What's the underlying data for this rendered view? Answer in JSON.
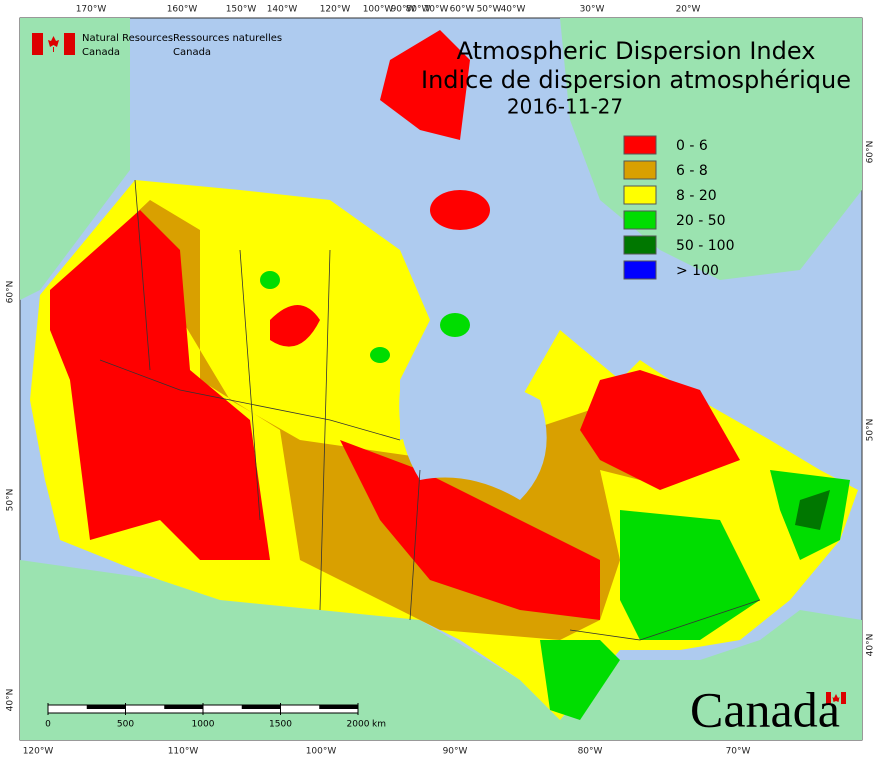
{
  "agency": {
    "en": [
      "Natural Resources",
      "Canada"
    ],
    "fr": [
      "Ressources naturelles",
      "Canada"
    ]
  },
  "title": {
    "en": "Atmospheric Dispersion Index",
    "fr": "Indice de dispersion atmosphérique",
    "date": "2016-11-27"
  },
  "legend": [
    {
      "label": "0 - 6",
      "color": "#ff0000"
    },
    {
      "label": "6 - 8",
      "color": "#d9a000"
    },
    {
      "label": "8 - 20",
      "color": "#ffff00"
    },
    {
      "label": "20 - 50",
      "color": "#00dd00"
    },
    {
      "label": "50 - 100",
      "color": "#007700"
    },
    {
      "label": "> 100",
      "color": "#0000ff"
    }
  ],
  "graticule": {
    "top": [
      "170°W",
      "160°W",
      "150°W",
      "140°W",
      "120°W",
      "100°W",
      "90°W",
      "80°W",
      "70°W",
      "60°W",
      "50°W",
      "40°W",
      "30°W",
      "20°W"
    ],
    "bottom": [
      "120°W",
      "110°W",
      "100°W",
      "90°W",
      "80°W",
      "70°W"
    ],
    "left": [
      "60°N",
      "50°N",
      "40°N"
    ],
    "right": [
      "60°N",
      "50°N",
      "40°N"
    ]
  },
  "scale_bar": {
    "ticks": [
      0,
      500,
      1000,
      1500,
      2000
    ],
    "unit": "km"
  },
  "wordmark": "Canada"
}
